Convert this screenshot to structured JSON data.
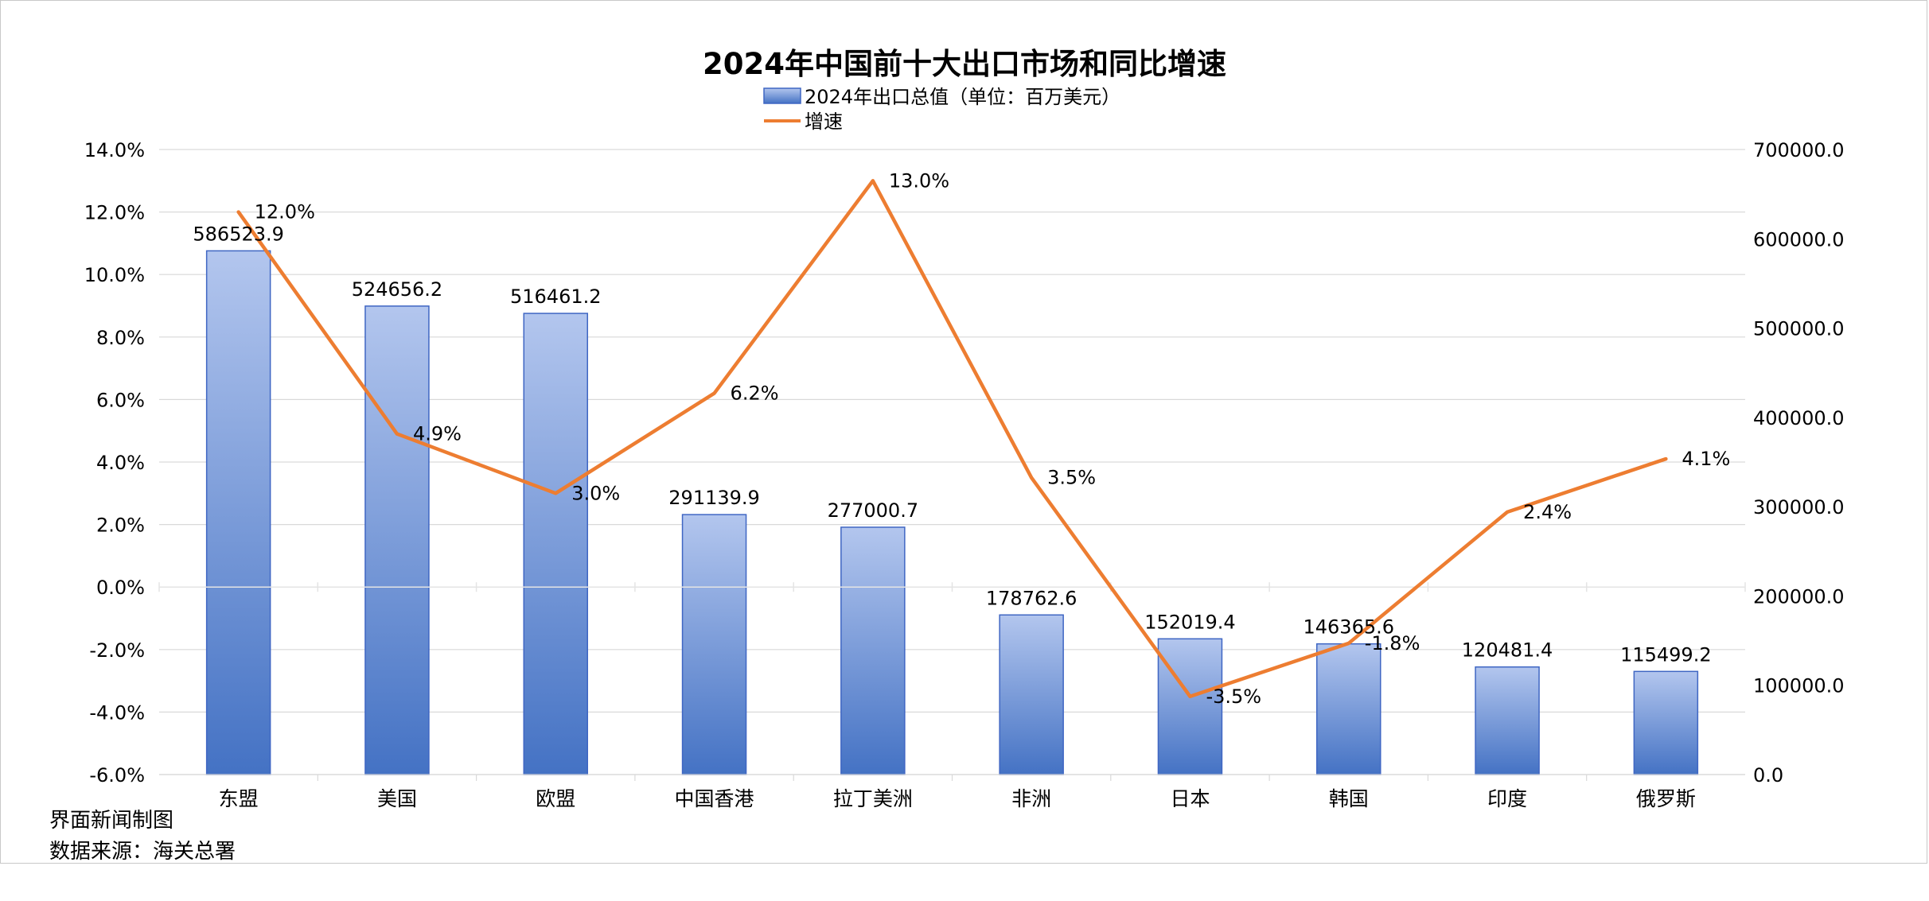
{
  "chart_data": {
    "type": "bar",
    "title": "2024年中国前十大出口市场和同比增速",
    "categories": [
      "东盟",
      "美国",
      "欧盟",
      "中国香港",
      "拉丁美洲",
      "非洲",
      "日本",
      "韩国",
      "印度",
      "俄罗斯"
    ],
    "series": [
      {
        "name": "2024年出口总值（单位：百万美元）",
        "type": "bar",
        "axis": "right",
        "values": [
          586523.9,
          524656.2,
          516461.2,
          291139.9,
          277000.7,
          178762.6,
          152019.4,
          146365.6,
          120481.4,
          115499.2
        ],
        "labels": [
          "586523.9",
          "524656.2",
          "516461.2",
          "291139.9",
          "277000.7",
          "178762.6",
          "152019.4",
          "146365.6",
          "120481.4",
          "115499.2"
        ]
      },
      {
        "name": "增速",
        "type": "line",
        "axis": "left",
        "values": [
          12.0,
          4.9,
          3.0,
          6.2,
          13.0,
          3.5,
          -3.5,
          -1.8,
          2.4,
          4.1
        ],
        "labels": [
          "12.0%",
          "4.9%",
          "3.0%",
          "6.2%",
          "13.0%",
          "3.5%",
          "-3.5%",
          "-1.8%",
          "2.4%",
          "4.1%"
        ]
      }
    ],
    "y_left": {
      "min": -6,
      "max": 14,
      "step": 2,
      "ticks": [
        "14.0%",
        "12.0%",
        "10.0%",
        "8.0%",
        "6.0%",
        "4.0%",
        "2.0%",
        "0.0%",
        "-2.0%",
        "-4.0%",
        "-6.0%"
      ]
    },
    "y_right": {
      "min": 0,
      "max": 700000,
      "step": 100000,
      "ticks": [
        "700000.0",
        "600000.0",
        "500000.0",
        "400000.0",
        "300000.0",
        "200000.0",
        "100000.0",
        "0.0"
      ]
    },
    "grid": true,
    "legend_position": "top-center",
    "colors": {
      "bar_top": "#b3c6ee",
      "bar_bottom": "#4472c4",
      "bar_border": "#3f66c3",
      "line": "#ed7d31",
      "grid": "#d9d9d9"
    }
  },
  "footer": {
    "credit": "界面新闻制图",
    "source": "数据来源：海关总署"
  }
}
